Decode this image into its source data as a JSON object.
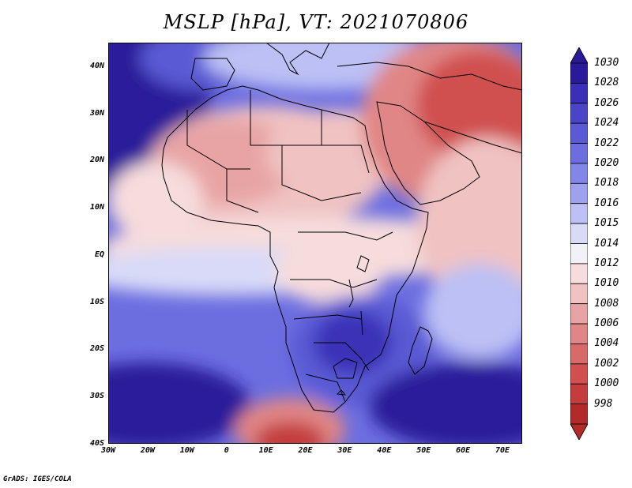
{
  "title": "MSLP [hPa], VT: 2021070806",
  "credit": "GrADS: IGES/COLA",
  "map": {
    "lon_range": [
      -30,
      75
    ],
    "lat_range": [
      -40,
      45
    ],
    "lon_labels": [
      "30W",
      "20W",
      "10W",
      "0",
      "10E",
      "20E",
      "30E",
      "40E",
      "50E",
      "60E",
      "70E"
    ],
    "lat_labels": [
      "40N",
      "30N",
      "20N",
      "10N",
      "EQ",
      "10S",
      "20S",
      "30S",
      "40S"
    ]
  },
  "colorbar": {
    "levels": [
      "1030",
      "1028",
      "1026",
      "1024",
      "1022",
      "1020",
      "1018",
      "1016",
      "1015",
      "1014",
      "1012",
      "1010",
      "1008",
      "1006",
      "1004",
      "1002",
      "1000",
      "998"
    ],
    "colors": [
      "#2a1a9a",
      "#3a30b8",
      "#4a45c8",
      "#5a5ad4",
      "#6c6ee0",
      "#8286e6",
      "#9ea2ee",
      "#bcc0f4",
      "#d8daf8",
      "#f2f2f6",
      "#f6dcdc",
      "#f0c2c2",
      "#e8a4a4",
      "#e08686",
      "#d86a6a",
      "#d05050",
      "#c43c3c",
      "#b22a2a"
    ]
  }
}
